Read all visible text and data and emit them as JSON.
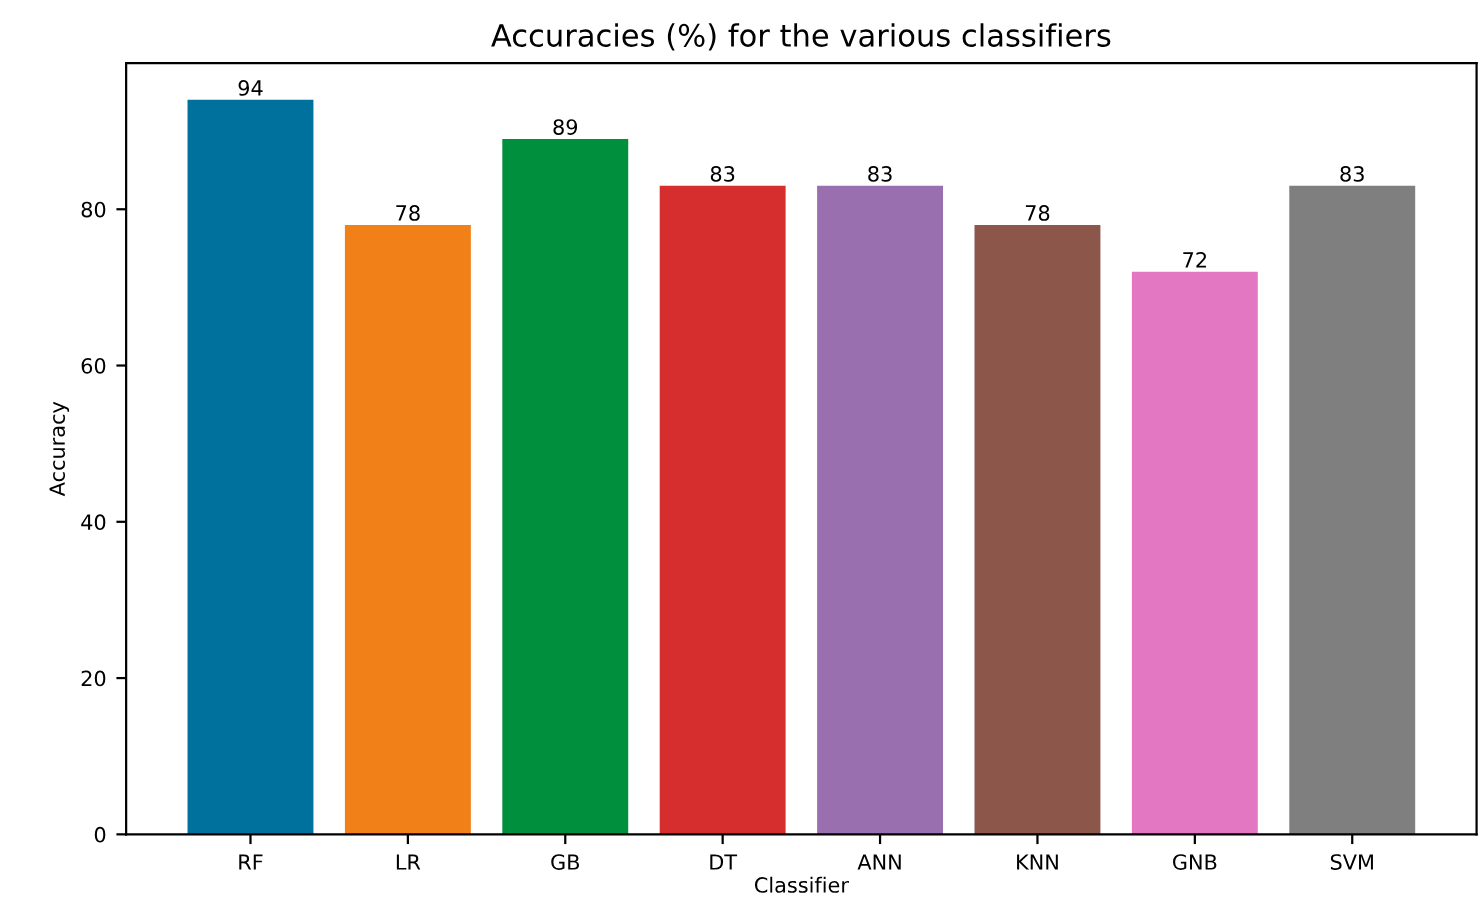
{
  "chart_data": {
    "type": "bar",
    "title": "Accuracies (%) for the various classifiers",
    "xlabel": "Classifier",
    "ylabel": "Accuracy",
    "categories": [
      "RF",
      "LR",
      "GB",
      "DT",
      "ANN",
      "KNN",
      "GNB",
      "SVM"
    ],
    "values": [
      94,
      78,
      89,
      83,
      83,
      78,
      72,
      83
    ],
    "colors": [
      "#00709c",
      "#f28018",
      "#008f3c",
      "#d62e2e",
      "#9a6fb0",
      "#8c564b",
      "#e377c2",
      "#7f7f7f"
    ],
    "ylim": [
      0,
      98.7
    ],
    "yticks": [
      0,
      20,
      40,
      60,
      80
    ],
    "data_labels": true,
    "grid": false,
    "legend": false
  }
}
